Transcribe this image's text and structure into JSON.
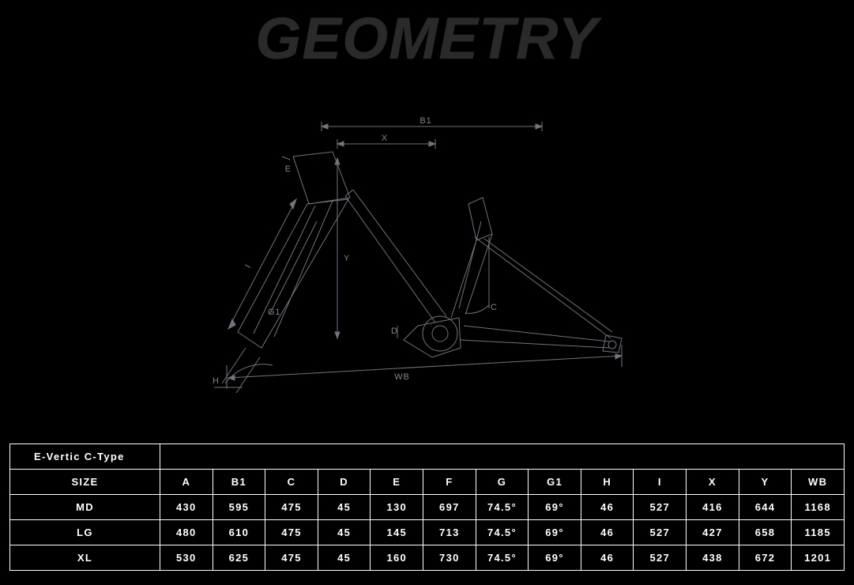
{
  "title": "GEOMETRY",
  "diagram": {
    "stroke": "#6f7578",
    "stroke_width": 1,
    "labels": [
      "B1",
      "X",
      "E",
      "I",
      "G1",
      "H",
      "Y",
      "D",
      "C",
      "WB"
    ],
    "label_color": "#808486",
    "label_fontsize": 10
  },
  "table": {
    "model_name": "E-Vertic C-Type",
    "size_header": "SIZE",
    "columns": [
      "A",
      "B1",
      "C",
      "D",
      "E",
      "F",
      "G",
      "G1",
      "H",
      "I",
      "X",
      "Y",
      "WB"
    ],
    "rows": [
      {
        "size": "MD",
        "values": [
          "430",
          "595",
          "475",
          "45",
          "130",
          "697",
          "74.5°",
          "69°",
          "46",
          "527",
          "416",
          "644",
          "1168"
        ]
      },
      {
        "size": "LG",
        "values": [
          "480",
          "610",
          "475",
          "45",
          "145",
          "713",
          "74.5°",
          "69°",
          "46",
          "527",
          "427",
          "658",
          "1185"
        ]
      },
      {
        "size": "XL",
        "values": [
          "530",
          "625",
          "475",
          "45",
          "160",
          "730",
          "74.5°",
          "69°",
          "46",
          "527",
          "438",
          "672",
          "1201"
        ]
      }
    ],
    "border_color": "#ffffff",
    "text_color": "#ffffff",
    "background": "#000000",
    "cell_fontsize": 13
  }
}
